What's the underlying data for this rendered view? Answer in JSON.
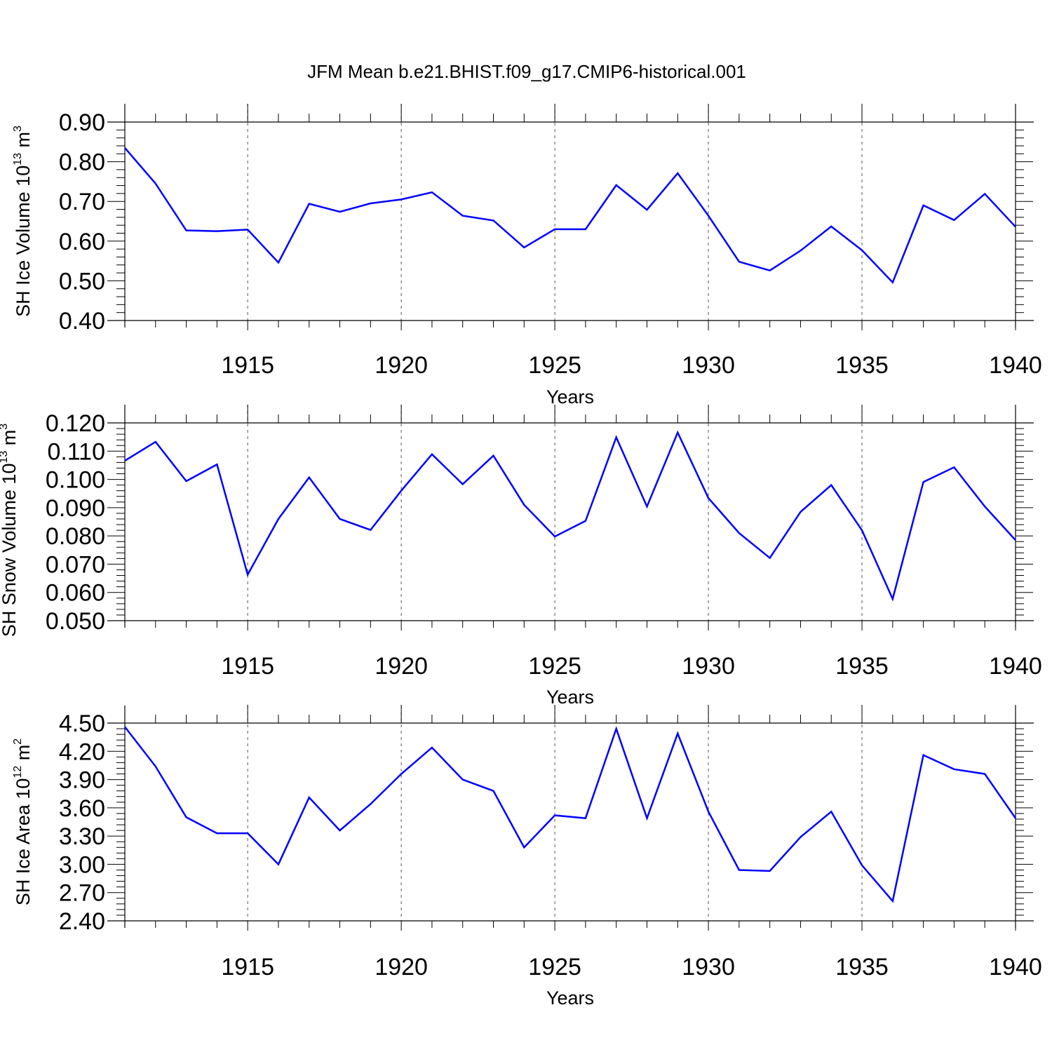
{
  "title": "JFM Mean b.e21.BHIST.f09_g17.CMIP6-historical.001",
  "colors": {
    "line": "#0000ff",
    "axis": "#000000",
    "grid": "#555555"
  },
  "chart_data": [
    {
      "type": "line",
      "xlabel": "Years",
      "ylabel": {
        "base": "SH Ice Volume 10",
        "exp1": "13",
        "mid": " m",
        "exp2": "3"
      },
      "xlim": [
        1911,
        1940
      ],
      "ylim": [
        0.4,
        0.9
      ],
      "yticks": [
        "0.40",
        "0.50",
        "0.60",
        "0.70",
        "0.80",
        "0.90"
      ],
      "xticks": [
        "1915",
        "1920",
        "1925",
        "1930",
        "1935",
        "1940"
      ],
      "grid": "x-dashed",
      "x": [
        1911,
        1912,
        1913,
        1914,
        1915,
        1916,
        1917,
        1918,
        1919,
        1920,
        1921,
        1922,
        1923,
        1924,
        1925,
        1926,
        1927,
        1928,
        1929,
        1930,
        1931,
        1932,
        1933,
        1934,
        1935,
        1936,
        1937,
        1938,
        1939,
        1940
      ],
      "series": [
        {
          "values": [
            0.835,
            0.745,
            0.627,
            0.625,
            0.629,
            0.546,
            0.694,
            0.674,
            0.695,
            0.705,
            0.723,
            0.664,
            0.652,
            0.584,
            0.63,
            0.63,
            0.741,
            0.679,
            0.771,
            0.664,
            0.548,
            0.526,
            0.576,
            0.637,
            0.577,
            0.496,
            0.69,
            0.653,
            0.719,
            0.636
          ]
        }
      ]
    },
    {
      "type": "line",
      "xlabel": "Years",
      "ylabel": {
        "base": "SH Snow Volume 10",
        "exp1": "13",
        "mid": " m",
        "exp2": "3"
      },
      "xlim": [
        1911,
        1940
      ],
      "ylim": [
        0.05,
        0.12
      ],
      "yticks": [
        "0.050",
        "0.060",
        "0.070",
        "0.080",
        "0.090",
        "0.100",
        "0.110",
        "0.120"
      ],
      "xticks": [
        "1915",
        "1920",
        "1925",
        "1930",
        "1935",
        "1940"
      ],
      "grid": "x-dashed",
      "x": [
        1911,
        1912,
        1913,
        1914,
        1915,
        1916,
        1917,
        1918,
        1919,
        1920,
        1921,
        1922,
        1923,
        1924,
        1925,
        1926,
        1927,
        1928,
        1929,
        1930,
        1931,
        1932,
        1933,
        1934,
        1935,
        1936,
        1937,
        1938,
        1939,
        1940
      ],
      "series": [
        {
          "values": [
            0.1066,
            0.1133,
            0.0994,
            0.1053,
            0.0663,
            0.086,
            0.1007,
            0.086,
            0.0821,
            0.096,
            0.1089,
            0.0983,
            0.1084,
            0.091,
            0.0798,
            0.0853,
            0.1149,
            0.0904,
            0.1166,
            0.0934,
            0.081,
            0.0722,
            0.0885,
            0.098,
            0.082,
            0.0577,
            0.0991,
            0.1043,
            0.0904,
            0.0785
          ]
        }
      ]
    },
    {
      "type": "line",
      "xlabel": "Years",
      "ylabel": {
        "base": "SH Ice Area 10",
        "exp1": "12",
        "mid": " m",
        "exp2": "2"
      },
      "xlim": [
        1911,
        1940
      ],
      "ylim": [
        2.4,
        4.5
      ],
      "yticks": [
        "2.40",
        "2.70",
        "3.00",
        "3.30",
        "3.60",
        "3.90",
        "4.20",
        "4.50"
      ],
      "xticks": [
        "1915",
        "1920",
        "1925",
        "1930",
        "1935",
        "1940"
      ],
      "grid": "x-dashed",
      "x": [
        1911,
        1912,
        1913,
        1914,
        1915,
        1916,
        1917,
        1918,
        1919,
        1920,
        1921,
        1922,
        1923,
        1924,
        1925,
        1926,
        1927,
        1928,
        1929,
        1930,
        1931,
        1932,
        1933,
        1934,
        1935,
        1936,
        1937,
        1938,
        1939,
        1940
      ],
      "series": [
        {
          "values": [
            4.46,
            4.04,
            3.5,
            3.33,
            3.33,
            3.0,
            3.71,
            3.36,
            3.64,
            3.96,
            4.24,
            3.9,
            3.78,
            3.18,
            3.52,
            3.49,
            4.44,
            3.49,
            4.39,
            3.56,
            2.94,
            2.93,
            3.29,
            3.56,
            2.99,
            2.61,
            4.16,
            4.01,
            3.96,
            3.49
          ]
        }
      ]
    }
  ]
}
